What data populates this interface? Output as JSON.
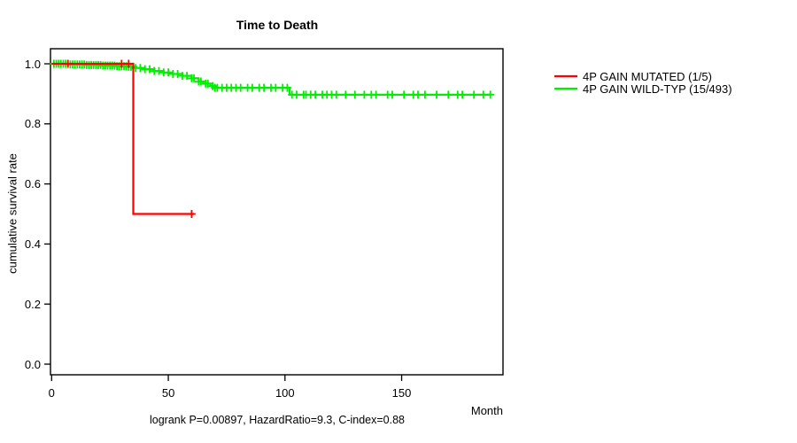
{
  "title": "Time to Death",
  "xlabel": "Month",
  "ylabel": "cumulative survival rate",
  "footnote": "logrank P=0.00897, HazardRatio=9.3, C-index=0.88",
  "legend": {
    "items": [
      {
        "label": "4P GAIN MUTATED (1/5)",
        "color": "#FF0000"
      },
      {
        "label": "4P GAIN WILD-TYP (15/493)",
        "color": "#00EE00"
      }
    ]
  },
  "chart_data": {
    "type": "line",
    "subtype": "kaplan-meier-step",
    "title": "Time to Death",
    "xlabel": "Month",
    "ylabel": "cumulative survival rate",
    "xlim": [
      0,
      193
    ],
    "ylim": [
      0,
      1.04
    ],
    "x_ticks": [
      0,
      50,
      100,
      150
    ],
    "y_ticks": [
      0.0,
      0.2,
      0.4,
      0.6,
      0.8,
      1.0
    ],
    "grid": false,
    "legend_position": "right-outside",
    "series": [
      {
        "name": "4P GAIN MUTATED (1/5)",
        "events": "1/5",
        "color": "#FF0000",
        "steps": [
          [
            0,
            1.0
          ],
          [
            35,
            0.5
          ]
        ],
        "end": 61,
        "censors": [
          7,
          30,
          33,
          60
        ]
      },
      {
        "name": "4P GAIN WILD-TYP (15/493)",
        "events": "15/493",
        "color": "#00EE00",
        "steps": [
          [
            0,
            1.0
          ],
          [
            8,
            0.998
          ],
          [
            15,
            0.996
          ],
          [
            22,
            0.994
          ],
          [
            28,
            0.992
          ],
          [
            33,
            0.99
          ],
          [
            36,
            0.986
          ],
          [
            40,
            0.982
          ],
          [
            44,
            0.976
          ],
          [
            48,
            0.971
          ],
          [
            52,
            0.966
          ],
          [
            56,
            0.96
          ],
          [
            60,
            0.952
          ],
          [
            63,
            0.941
          ],
          [
            65,
            0.934
          ],
          [
            68,
            0.926
          ],
          [
            70,
            0.92
          ],
          [
            102,
            0.897
          ]
        ],
        "end": 188,
        "censors": [
          1,
          2,
          3,
          4,
          5,
          6,
          7,
          8,
          9,
          10,
          11,
          12,
          13,
          14,
          15,
          16,
          17,
          18,
          19,
          20,
          21,
          22,
          23,
          24,
          25,
          26,
          27,
          28,
          29,
          30,
          31,
          32,
          33,
          34,
          35,
          36,
          38,
          40,
          42,
          44,
          46,
          48,
          50,
          52,
          54,
          56,
          58,
          60,
          61,
          63,
          64,
          66,
          67,
          69,
          70,
          71,
          73,
          75,
          77,
          79,
          81,
          84,
          86,
          89,
          91,
          94,
          96,
          99,
          101,
          103,
          105,
          108,
          109,
          111,
          113,
          116,
          118,
          120,
          122,
          126,
          130,
          134,
          137,
          139,
          144,
          146,
          151,
          155,
          157,
          160,
          165,
          170,
          174,
          176,
          181,
          185,
          188
        ]
      }
    ]
  }
}
